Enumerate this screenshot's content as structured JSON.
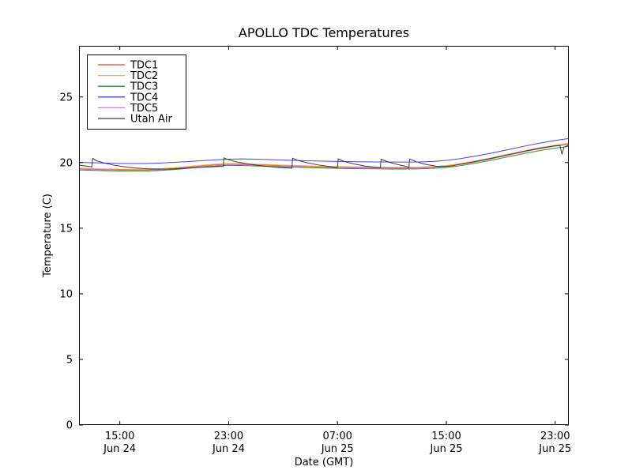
{
  "chart_data": {
    "type": "line",
    "title": "APOLLO TDC Temperatures",
    "xlabel": "Date (GMT)",
    "ylabel": "Temperature (C)",
    "x_unit": "hours from Jun 24 ~12:00 GMT",
    "xlim_hours": [
      0,
      36
    ],
    "ylim": [
      0,
      28.9
    ],
    "yticks": [
      0,
      5,
      10,
      15,
      20,
      25
    ],
    "xticks": [
      {
        "hour": 3,
        "time": "15:00",
        "date": "Jun 24"
      },
      {
        "hour": 11,
        "time": "23:00",
        "date": "Jun 24"
      },
      {
        "hour": 19,
        "time": "07:00",
        "date": "Jun 25"
      },
      {
        "hour": 27,
        "time": "15:00",
        "date": "Jun 25"
      },
      {
        "hour": 35,
        "time": "23:00",
        "date": "Jun 25"
      }
    ],
    "grid": false,
    "legend": {
      "position": "upper left",
      "entries": [
        "TDC1",
        "TDC2",
        "TDC3",
        "TDC4",
        "TDC5",
        "Utah Air"
      ]
    },
    "colors": {
      "frame": "#000000",
      "background": "#ffffff"
    },
    "series": [
      {
        "name": "TDC1",
        "color": "#e4453f",
        "points": [
          [
            0,
            19.53
          ],
          [
            1,
            19.5
          ],
          [
            2,
            19.47
          ],
          [
            3,
            19.45
          ],
          [
            4,
            19.44
          ],
          [
            5,
            19.45
          ],
          [
            6,
            19.49
          ],
          [
            7,
            19.56
          ],
          [
            8,
            19.65
          ],
          [
            9,
            19.75
          ],
          [
            10,
            19.83
          ],
          [
            11,
            19.88
          ],
          [
            12,
            19.87
          ],
          [
            13,
            19.83
          ],
          [
            14,
            19.8
          ],
          [
            15,
            19.76
          ],
          [
            16,
            19.73
          ],
          [
            17,
            19.7
          ],
          [
            18,
            19.67
          ],
          [
            19,
            19.65
          ],
          [
            20,
            19.63
          ],
          [
            21,
            19.62
          ],
          [
            22,
            19.61
          ],
          [
            23,
            19.6
          ],
          [
            24,
            19.6
          ],
          [
            25,
            19.61
          ],
          [
            26,
            19.65
          ],
          [
            27,
            19.73
          ],
          [
            28,
            19.87
          ],
          [
            29,
            20.05
          ],
          [
            30,
            20.25
          ],
          [
            31,
            20.47
          ],
          [
            32,
            20.69
          ],
          [
            33,
            20.91
          ],
          [
            34,
            21.11
          ],
          [
            35,
            21.28
          ],
          [
            36,
            21.43
          ]
        ]
      },
      {
        "name": "TDC2",
        "color": "#ffae42",
        "points": [
          [
            0,
            19.58
          ],
          [
            1,
            19.55
          ],
          [
            2,
            19.52
          ],
          [
            3,
            19.5
          ],
          [
            4,
            19.49
          ],
          [
            5,
            19.5
          ],
          [
            6,
            19.54
          ],
          [
            7,
            19.61
          ],
          [
            8,
            19.7
          ],
          [
            9,
            19.8
          ],
          [
            10,
            19.88
          ],
          [
            11,
            19.93
          ],
          [
            12,
            19.92
          ],
          [
            13,
            19.88
          ],
          [
            14,
            19.85
          ],
          [
            15,
            19.81
          ],
          [
            16,
            19.78
          ],
          [
            17,
            19.75
          ],
          [
            18,
            19.72
          ],
          [
            19,
            19.7
          ],
          [
            20,
            19.68
          ],
          [
            21,
            19.67
          ],
          [
            22,
            19.66
          ],
          [
            23,
            19.65
          ],
          [
            24,
            19.65
          ],
          [
            25,
            19.66
          ],
          [
            26,
            19.7
          ],
          [
            27,
            19.78
          ],
          [
            28,
            19.92
          ],
          [
            29,
            20.1
          ],
          [
            30,
            20.3
          ],
          [
            31,
            20.52
          ],
          [
            32,
            20.74
          ],
          [
            33,
            20.96
          ],
          [
            34,
            21.16
          ],
          [
            35,
            21.33
          ],
          [
            36,
            21.48
          ]
        ]
      },
      {
        "name": "TDC3",
        "color": "#2f8f2f",
        "points": [
          [
            0,
            19.44
          ],
          [
            1,
            19.41
          ],
          [
            2,
            19.38
          ],
          [
            3,
            19.36
          ],
          [
            4,
            19.35
          ],
          [
            5,
            19.36
          ],
          [
            6,
            19.4
          ],
          [
            7,
            19.47
          ],
          [
            8,
            19.56
          ],
          [
            9,
            19.66
          ],
          [
            10,
            19.74
          ],
          [
            11,
            19.79
          ],
          [
            12,
            19.78
          ],
          [
            13,
            19.74
          ],
          [
            14,
            19.71
          ],
          [
            15,
            19.67
          ],
          [
            16,
            19.64
          ],
          [
            17,
            19.61
          ],
          [
            18,
            19.58
          ],
          [
            19,
            19.56
          ],
          [
            20,
            19.54
          ],
          [
            21,
            19.53
          ],
          [
            22,
            19.52
          ],
          [
            23,
            19.51
          ],
          [
            24,
            19.51
          ],
          [
            25,
            19.52
          ],
          [
            26,
            19.56
          ],
          [
            27,
            19.63
          ],
          [
            28,
            19.76
          ],
          [
            29,
            19.93
          ],
          [
            30,
            20.12
          ],
          [
            31,
            20.33
          ],
          [
            32,
            20.54
          ],
          [
            33,
            20.75
          ],
          [
            34,
            20.94
          ],
          [
            35,
            21.1
          ],
          [
            36,
            21.24
          ]
        ]
      },
      {
        "name": "TDC4",
        "color": "#4545e6",
        "points": [
          [
            0,
            20.02
          ],
          [
            1,
            19.99
          ],
          [
            2,
            19.96
          ],
          [
            3,
            19.94
          ],
          [
            4,
            19.93
          ],
          [
            5,
            19.94
          ],
          [
            6,
            19.97
          ],
          [
            7,
            20.02
          ],
          [
            8,
            20.08
          ],
          [
            9,
            20.15
          ],
          [
            10,
            20.21
          ],
          [
            11,
            20.26
          ],
          [
            12,
            20.28
          ],
          [
            13,
            20.26
          ],
          [
            14,
            20.23
          ],
          [
            15,
            20.19
          ],
          [
            16,
            20.16
          ],
          [
            17,
            20.13
          ],
          [
            18,
            20.11
          ],
          [
            19,
            20.09
          ],
          [
            20,
            20.07
          ],
          [
            21,
            20.06
          ],
          [
            22,
            20.05
          ],
          [
            23,
            20.04
          ],
          [
            24,
            20.04
          ],
          [
            25,
            20.05
          ],
          [
            26,
            20.09
          ],
          [
            27,
            20.17
          ],
          [
            28,
            20.3
          ],
          [
            29,
            20.47
          ],
          [
            30,
            20.66
          ],
          [
            31,
            20.87
          ],
          [
            32,
            21.09
          ],
          [
            33,
            21.31
          ],
          [
            34,
            21.51
          ],
          [
            35,
            21.69
          ],
          [
            36,
            21.83
          ]
        ]
      },
      {
        "name": "TDC5",
        "color": "#c97fc9",
        "points": [
          [
            0,
            19.5
          ],
          [
            1,
            19.47
          ],
          [
            2,
            19.44
          ],
          [
            3,
            19.42
          ],
          [
            4,
            19.41
          ],
          [
            5,
            19.42
          ],
          [
            6,
            19.46
          ],
          [
            7,
            19.53
          ],
          [
            8,
            19.62
          ],
          [
            9,
            19.72
          ],
          [
            10,
            19.8
          ],
          [
            11,
            19.85
          ],
          [
            12,
            19.84
          ],
          [
            13,
            19.8
          ],
          [
            14,
            19.77
          ],
          [
            15,
            19.73
          ],
          [
            16,
            19.7
          ],
          [
            17,
            19.67
          ],
          [
            18,
            19.64
          ],
          [
            19,
            19.62
          ],
          [
            20,
            19.6
          ],
          [
            21,
            19.59
          ],
          [
            22,
            19.58
          ],
          [
            23,
            19.57
          ],
          [
            24,
            19.57
          ],
          [
            25,
            19.58
          ],
          [
            26,
            19.62
          ],
          [
            27,
            19.7
          ],
          [
            28,
            19.84
          ],
          [
            29,
            20.02
          ],
          [
            30,
            20.22
          ],
          [
            31,
            20.44
          ],
          [
            32,
            20.66
          ],
          [
            33,
            20.88
          ],
          [
            34,
            21.08
          ],
          [
            35,
            21.25
          ],
          [
            36,
            21.4
          ]
        ]
      },
      {
        "name": "Utah Air",
        "color": "#3c3c3c",
        "points": [
          [
            0,
            19.8
          ],
          [
            0.5,
            19.74
          ],
          [
            0.95,
            19.68
          ],
          [
            1.0,
            20.32
          ],
          [
            1.3,
            20.14
          ],
          [
            1.8,
            19.98
          ],
          [
            2.5,
            19.82
          ],
          [
            3.2,
            19.7
          ],
          [
            4.0,
            19.6
          ],
          [
            5.0,
            19.53
          ],
          [
            6.0,
            19.5
          ],
          [
            7.0,
            19.52
          ],
          [
            8.0,
            19.58
          ],
          [
            9.0,
            19.64
          ],
          [
            10.0,
            19.69
          ],
          [
            10.6,
            19.71
          ],
          [
            10.65,
            20.36
          ],
          [
            11.0,
            20.22
          ],
          [
            11.6,
            20.05
          ],
          [
            12.4,
            19.9
          ],
          [
            13.3,
            19.77
          ],
          [
            14.3,
            19.66
          ],
          [
            15.3,
            19.59
          ],
          [
            15.65,
            19.57
          ],
          [
            15.7,
            20.33
          ],
          [
            16.1,
            20.16
          ],
          [
            16.8,
            19.98
          ],
          [
            17.6,
            19.82
          ],
          [
            18.4,
            19.7
          ],
          [
            19.0,
            19.62
          ],
          [
            19.05,
            20.28
          ],
          [
            19.5,
            20.08
          ],
          [
            20.2,
            19.9
          ],
          [
            21.0,
            19.74
          ],
          [
            21.8,
            19.64
          ],
          [
            22.15,
            19.6
          ],
          [
            22.2,
            20.26
          ],
          [
            22.7,
            20.05
          ],
          [
            23.4,
            19.86
          ],
          [
            24.1,
            19.7
          ],
          [
            24.25,
            19.62
          ],
          [
            24.3,
            20.28
          ],
          [
            24.8,
            20.06
          ],
          [
            25.5,
            19.86
          ],
          [
            26.3,
            19.72
          ],
          [
            27.0,
            19.7
          ],
          [
            27.5,
            19.76
          ],
          [
            28,
            19.88
          ],
          [
            29,
            20.06
          ],
          [
            30,
            20.26
          ],
          [
            31,
            20.48
          ],
          [
            32,
            20.7
          ],
          [
            33,
            20.92
          ],
          [
            34,
            21.12
          ],
          [
            35,
            21.28
          ],
          [
            35.35,
            21.3
          ],
          [
            35.5,
            20.62
          ],
          [
            35.65,
            21.18
          ],
          [
            36,
            21.35
          ]
        ]
      }
    ]
  }
}
